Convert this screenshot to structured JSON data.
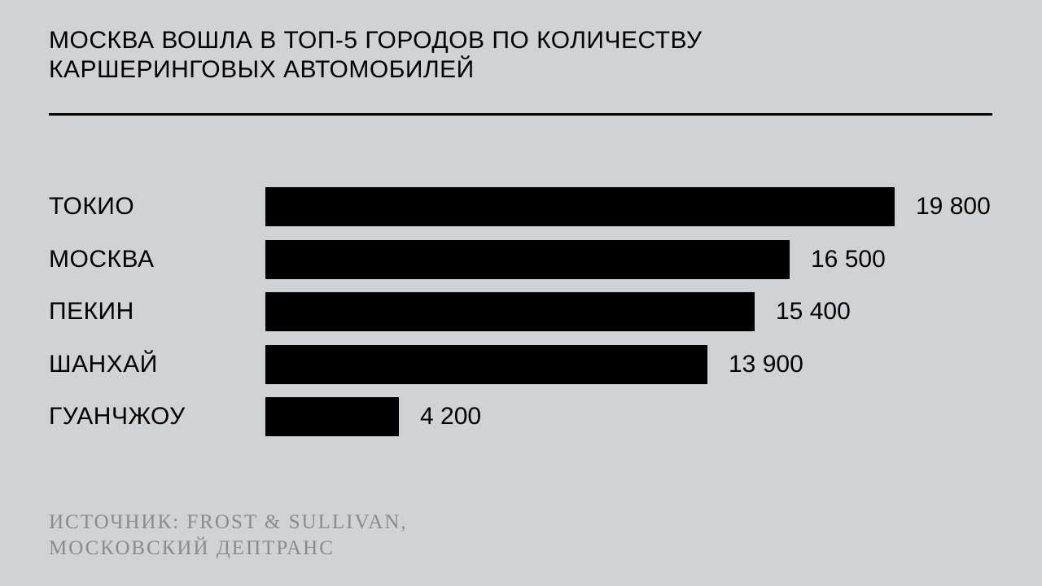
{
  "title": {
    "line1": "МОСКВА ВОШЛА В ТОП-5 ГОРОДОВ ПО КОЛИЧЕСТВУ",
    "line2": "КАРШЕРИНГОВЫХ АВТОМОБИЛЕЙ"
  },
  "source": {
    "line1": "ИСТОЧНИК: FROST & SULLIVAN,",
    "line2": "МОСКОВСКИЙ ДЕПТРАНС"
  },
  "colors": {
    "background": "#d1d2d4",
    "bar": "#000000",
    "text": "#000000",
    "source_text": "#8a8b8d"
  },
  "chart_data": {
    "type": "bar",
    "orientation": "horizontal",
    "title": "МОСКВА ВОШЛА В ТОП-5 ГОРОДОВ ПО КОЛИЧЕСТВУ КАРШЕРИНГОВЫХ АВТОМОБИЛЕЙ",
    "categories": [
      "ТОКИО",
      "МОСКВА",
      "ПЕКИН",
      "ШАНХАЙ",
      "ГУАНЧЖОУ"
    ],
    "values": [
      19800,
      16500,
      15400,
      13900,
      4200
    ],
    "value_labels": [
      "19 800",
      "16 500",
      "15 400",
      "13 900",
      "4 200"
    ],
    "xlim": [
      0,
      19800
    ],
    "grid": false,
    "legend": "none",
    "xlabel": "",
    "ylabel": ""
  }
}
